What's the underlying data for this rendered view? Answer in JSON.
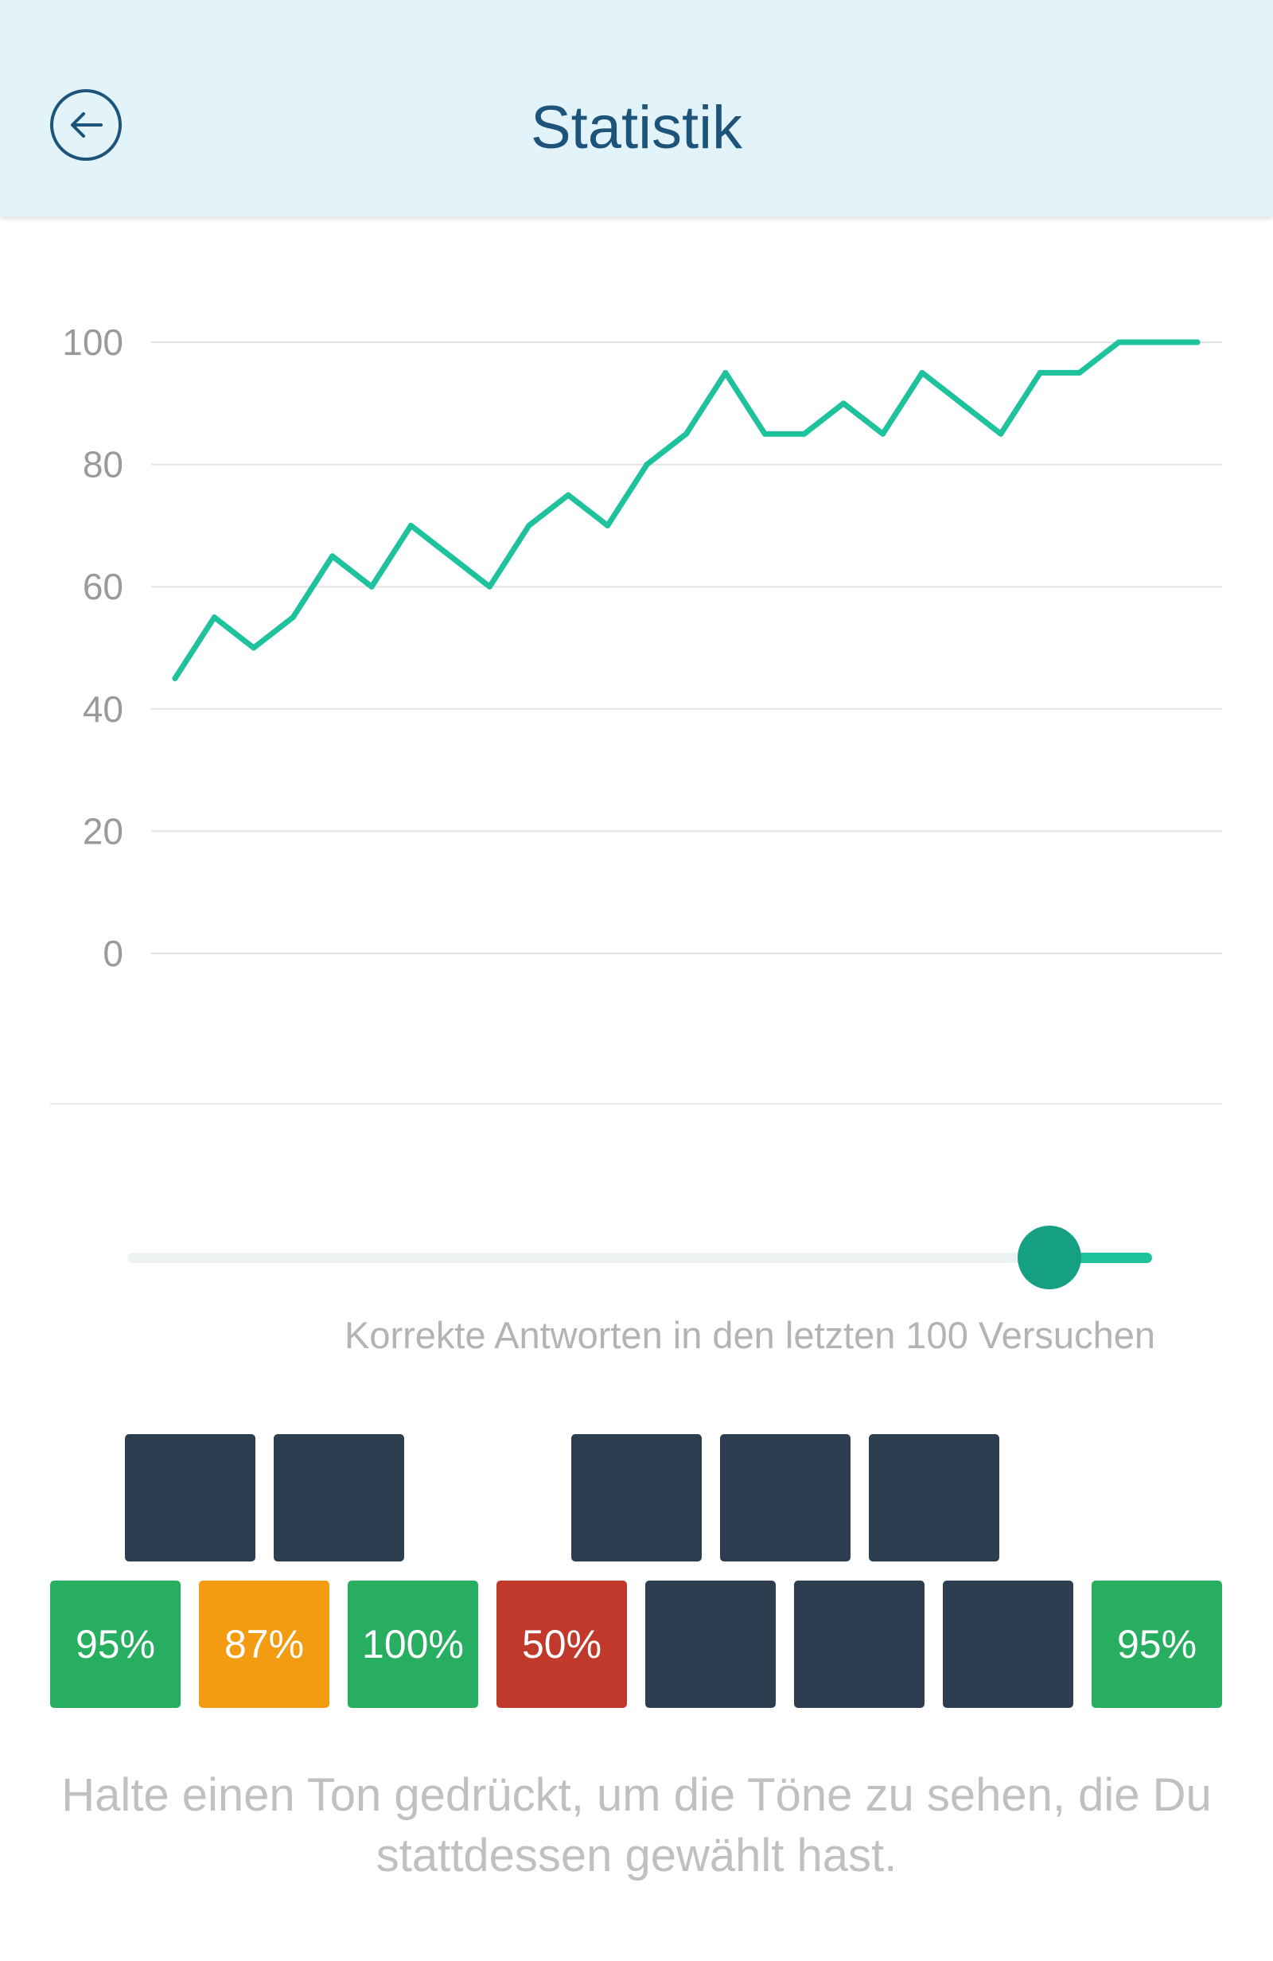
{
  "header": {
    "title": "Statistik",
    "back_icon": "arrow-left-icon",
    "colors": {
      "background": "#e2f4fa",
      "text": "#1e5479"
    }
  },
  "chart_data": {
    "type": "line",
    "x": [
      1,
      2,
      3,
      4,
      5,
      6,
      7,
      8,
      9,
      10,
      11,
      12,
      13,
      14,
      15,
      16,
      17,
      18,
      19,
      20,
      21,
      22,
      23,
      24,
      25,
      26,
      27
    ],
    "series": [
      {
        "values": [
          45,
          55,
          50,
          55,
          65,
          60,
          70,
          65,
          60,
          70,
          75,
          70,
          80,
          85,
          95,
          85,
          85,
          90,
          85,
          95,
          90,
          85,
          95,
          95,
          100,
          100,
          100
        ],
        "color": "#1ec29d"
      }
    ],
    "ylim": [
      0,
      100
    ],
    "yticks": [
      "0",
      "20",
      "40",
      "60",
      "80",
      "100"
    ],
    "grid": true,
    "title": "",
    "xlabel": "",
    "ylabel": ""
  },
  "slider": {
    "value_fraction": 0.9,
    "caption": "Korrekte Antworten in den letzten 100 Versuchen",
    "colors": {
      "track": "#eef2f2",
      "fill": "#1ec29d",
      "thumb": "#16a083"
    }
  },
  "keyboard": {
    "upper_keys": [
      {
        "label": "",
        "color": "#2e3e51"
      },
      {
        "label": "",
        "color": "#2e3e51"
      },
      {
        "label": "",
        "color": "#2e3e51"
      },
      {
        "label": "",
        "color": "#2e3e51"
      },
      {
        "label": "",
        "color": "#2e3e51"
      }
    ],
    "lower_keys": [
      {
        "label": "95%",
        "color": "#27ae60"
      },
      {
        "label": "87%",
        "color": "#f39c12"
      },
      {
        "label": "100%",
        "color": "#27ae60"
      },
      {
        "label": "50%",
        "color": "#c0392b"
      },
      {
        "label": "",
        "color": "#2e3e51"
      },
      {
        "label": "",
        "color": "#2e3e51"
      },
      {
        "label": "",
        "color": "#2e3e51"
      },
      {
        "label": "95%",
        "color": "#27ae60"
      }
    ]
  },
  "hint": "Halte einen Ton gedrückt, um die Töne zu sehen, die Du stattdessen gewählt hast."
}
